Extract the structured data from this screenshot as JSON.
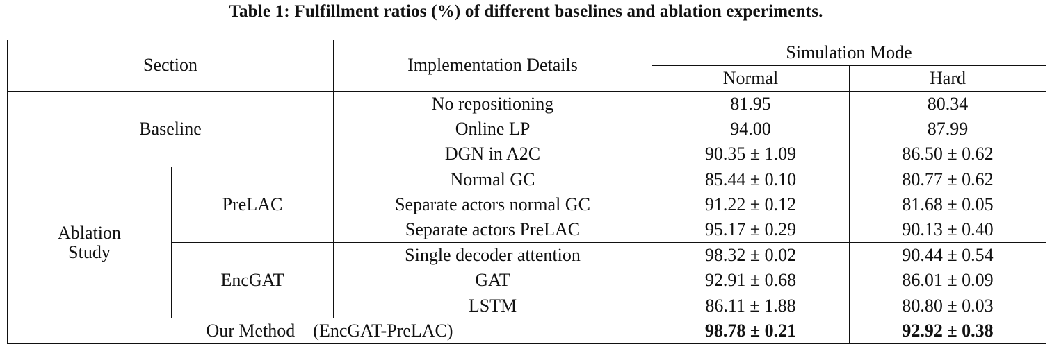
{
  "caption": "Table 1: Fulfillment ratios (%) of different baselines and ablation experiments.",
  "headers": {
    "section": "Section",
    "implementation": "Implementation Details",
    "simulation_mode": "Simulation Mode",
    "normal": "Normal",
    "hard": "Hard"
  },
  "baseline": {
    "label": "Baseline",
    "rows": [
      {
        "impl": "No repositioning",
        "normal": "81.95",
        "hard": "80.34"
      },
      {
        "impl": "Online LP",
        "normal": "94.00",
        "hard": "87.99"
      },
      {
        "impl": "DGN in A2C",
        "normal": "90.35 ± 1.09",
        "hard": "86.50 ± 0.62"
      }
    ]
  },
  "ablation": {
    "label_line1": "Ablation",
    "label_line2": "Study",
    "groups": [
      {
        "label": "PreLAC",
        "rows": [
          {
            "impl": "Normal GC",
            "normal": "85.44 ± 0.10",
            "hard": "80.77 ± 0.62"
          },
          {
            "impl": "Separate actors normal GC",
            "normal": "91.22 ± 0.12",
            "hard": "81.68 ± 0.05"
          },
          {
            "impl": "Separate actors PreLAC",
            "normal": "95.17 ± 0.29",
            "hard": "90.13 ± 0.40"
          }
        ]
      },
      {
        "label": "EncGAT",
        "rows": [
          {
            "impl": "Single decoder attention",
            "normal": "98.32 ± 0.02",
            "hard": "90.44 ± 0.54"
          },
          {
            "impl": "GAT",
            "normal": "92.91 ± 0.68",
            "hard": "86.01 ± 0.09"
          },
          {
            "impl": "LSTM",
            "normal": "86.11 ± 1.88",
            "hard": "80.80 ± 0.03"
          }
        ]
      }
    ]
  },
  "ours": {
    "label": "Our Method",
    "detail": "(EncGAT-PreLAC)",
    "normal": "98.78 ± 0.21",
    "hard": "92.92 ± 0.38"
  }
}
